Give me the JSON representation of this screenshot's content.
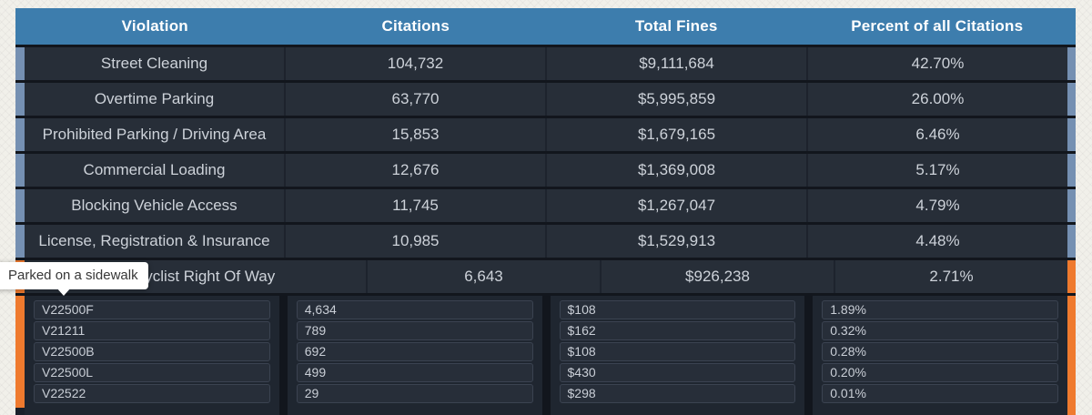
{
  "colors": {
    "page_bg": "#f1f0ea",
    "table_bg": "#12161d",
    "header_bg": "#3d7dad",
    "row_bg": "#272e38",
    "panel_bg": "#1f2630",
    "subcell_bg": "#272e39",
    "accent_blue": "#7590b2",
    "accent_orange": "#ef7a2e",
    "tooltip_bg": "#ffffff"
  },
  "table": {
    "columns": [
      {
        "label": "Violation"
      },
      {
        "label": "Citations"
      },
      {
        "label": "Total Fines"
      },
      {
        "label": "Percent of all Citations"
      }
    ],
    "rows": [
      {
        "violation": "Street Cleaning",
        "citations": "104,732",
        "total_fines": "$9,111,684",
        "percent": "42.70%",
        "accent": "blue"
      },
      {
        "violation": "Overtime Parking",
        "citations": "63,770",
        "total_fines": "$5,995,859",
        "percent": "26.00%",
        "accent": "blue"
      },
      {
        "violation": "Prohibited Parking / Driving Area",
        "citations": "15,853",
        "total_fines": "$1,679,165",
        "percent": "6.46%",
        "accent": "blue"
      },
      {
        "violation": "Commercial Loading",
        "citations": "12,676",
        "total_fines": "$1,369,008",
        "percent": "5.17%",
        "accent": "blue"
      },
      {
        "violation": "Blocking Vehicle Access",
        "citations": "11,745",
        "total_fines": "$1,267,047",
        "percent": "4.79%",
        "accent": "blue"
      },
      {
        "violation": "License, Registration & Insurance",
        "citations": "10,985",
        "total_fines": "$1,529,913",
        "percent": "4.48%",
        "accent": "blue"
      },
      {
        "violation": "Cyclist Right Of Way",
        "citations": "6,643",
        "total_fines": "$926,238",
        "percent": "2.71%",
        "accent": "orange"
      }
    ],
    "expanded_rows": [
      {
        "code": "V22500F",
        "citations": "4,634",
        "fine": "$108",
        "percent": "1.89%"
      },
      {
        "code": "V21211",
        "citations": "789",
        "fine": "$162",
        "percent": "0.32%"
      },
      {
        "code": "V22500B",
        "citations": "692",
        "fine": "$108",
        "percent": "0.28%"
      },
      {
        "code": "V22500L",
        "citations": "499",
        "fine": "$430",
        "percent": "0.20%"
      },
      {
        "code": "V22522",
        "citations": "29",
        "fine": "$298",
        "percent": "0.01%"
      }
    ]
  },
  "tooltip": {
    "text": "Parked on a sidewalk"
  }
}
